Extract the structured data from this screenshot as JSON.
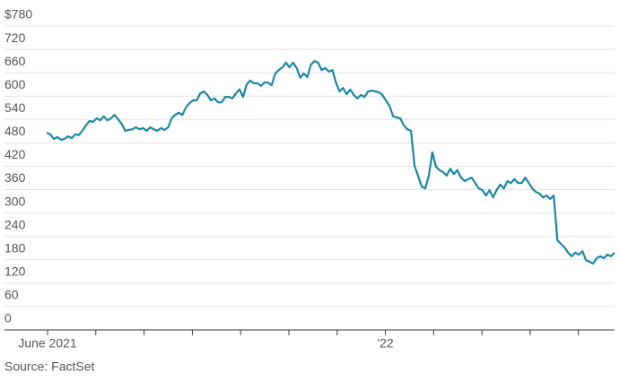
{
  "chart_data": {
    "type": "line",
    "source": "Source: FactSet",
    "xticks": [
      "June 2021",
      null,
      null,
      null,
      null,
      null,
      null,
      "'22",
      null,
      null,
      null,
      null
    ],
    "color": "#1b87a6",
    "ylim": [
      0,
      780
    ],
    "yticks": [
      0,
      60,
      120,
      180,
      240,
      300,
      360,
      420,
      480,
      540,
      600,
      660,
      720,
      {
        "value": 780,
        "label": "$780"
      }
    ],
    "grid": true,
    "values": [
      506,
      502,
      490,
      495,
      488,
      490,
      497,
      492,
      502,
      500,
      511,
      525,
      536,
      534,
      543,
      538,
      548,
      538,
      543,
      552,
      541,
      529,
      511,
      513,
      515,
      520,
      515,
      518,
      511,
      520,
      515,
      511,
      518,
      513,
      520,
      543,
      552,
      557,
      552,
      571,
      582,
      589,
      589,
      607,
      612,
      603,
      589,
      594,
      584,
      584,
      598,
      598,
      594,
      607,
      617,
      598,
      630,
      640,
      633,
      633,
      626,
      635,
      635,
      628,
      658,
      667,
      674,
      686,
      674,
      686,
      672,
      647,
      658,
      649,
      681,
      690,
      686,
      667,
      672,
      663,
      667,
      635,
      612,
      621,
      605,
      617,
      603,
      594,
      603,
      598,
      612,
      614,
      612,
      610,
      603,
      589,
      575,
      548,
      545,
      543,
      525,
      515,
      511,
      421,
      396,
      368,
      363,
      396,
      456,
      419,
      410,
      405,
      396,
      414,
      400,
      410,
      391,
      382,
      387,
      391,
      377,
      363,
      359,
      345,
      359,
      340,
      359,
      373,
      363,
      382,
      377,
      387,
      377,
      377,
      391,
      377,
      363,
      354,
      350,
      340,
      345,
      336,
      345,
      230,
      221,
      212,
      198,
      189,
      198,
      193,
      202,
      179,
      175,
      170,
      184,
      189,
      184,
      193,
      189,
      198
    ]
  }
}
